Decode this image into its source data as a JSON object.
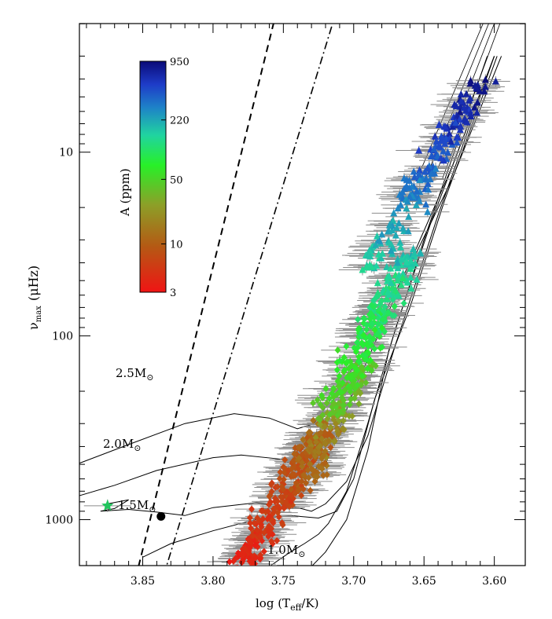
{
  "chart_data": {
    "type": "scatter",
    "title": "",
    "xlabel": "log (T",
    "xlabel_sub": "eff",
    "xlabel_end": "/K)",
    "ylabel": "ν",
    "ylabel_sub": "max",
    "ylabel_end": "(μHz)",
    "xlim": [
      3.895,
      3.578
    ],
    "ylim_log": [
      3.25,
      0.3
    ],
    "x_ticks": [
      "3.85",
      "3.80",
      "3.75",
      "3.70",
      "3.65",
      "3.60"
    ],
    "x_tick_values": [
      3.85,
      3.8,
      3.75,
      3.7,
      3.65,
      3.6
    ],
    "y_ticks": [
      "10",
      "100",
      "1000"
    ],
    "y_tick_values": [
      10,
      100,
      1000
    ],
    "colorbar": {
      "label": "A (ppm)",
      "ticks": [
        "950",
        "220",
        "50",
        "10",
        "3"
      ],
      "colors": [
        "#0a0a78",
        "#1e3cc8",
        "#1e82c8",
        "#20d4a0",
        "#28f028",
        "#8ca028",
        "#b45a14",
        "#f01414"
      ]
    },
    "clusters": [
      {
        "name": "main-sequence",
        "x_range": [
          3.79,
          3.72
        ],
        "numax_range": [
          300,
          2400
        ],
        "amp_range": [
          3,
          12
        ],
        "count": 330
      },
      {
        "name": "subgiants",
        "x_range": [
          3.74,
          3.69
        ],
        "numax_range": [
          140,
          700
        ],
        "amp_range": [
          10,
          45
        ],
        "count": 130
      },
      {
        "name": "red-giants-low",
        "x_range": [
          3.72,
          3.66
        ],
        "numax_range": [
          35,
          280
        ],
        "amp_range": [
          40,
          180
        ],
        "count": 260
      },
      {
        "name": "red-giants-high",
        "x_range": [
          3.69,
          3.61
        ],
        "numax_range": [
          4,
          45
        ],
        "amp_range": [
          150,
          900
        ],
        "count": 190
      }
    ],
    "special_points": [
      {
        "name": "green-star",
        "x": 3.875,
        "numax": 840,
        "marker": "star",
        "color": "#22c55e"
      },
      {
        "name": "black-dot",
        "x": 3.837,
        "numax": 960,
        "marker": "circle",
        "color": "#000000"
      }
    ],
    "tracks": [
      {
        "label": "2.5M",
        "label_suffix": "⊙"
      },
      {
        "label": "2.0M",
        "label_suffix": "⊙"
      },
      {
        "label": "1.5M",
        "label_suffix": "⊙"
      },
      {
        "label": "1.0M",
        "label_suffix": "⊙"
      }
    ],
    "lines": [
      {
        "name": "dashed-boundary",
        "style": "dashed"
      },
      {
        "name": "dash-dot-boundary",
        "style": "dash-dot"
      }
    ]
  }
}
